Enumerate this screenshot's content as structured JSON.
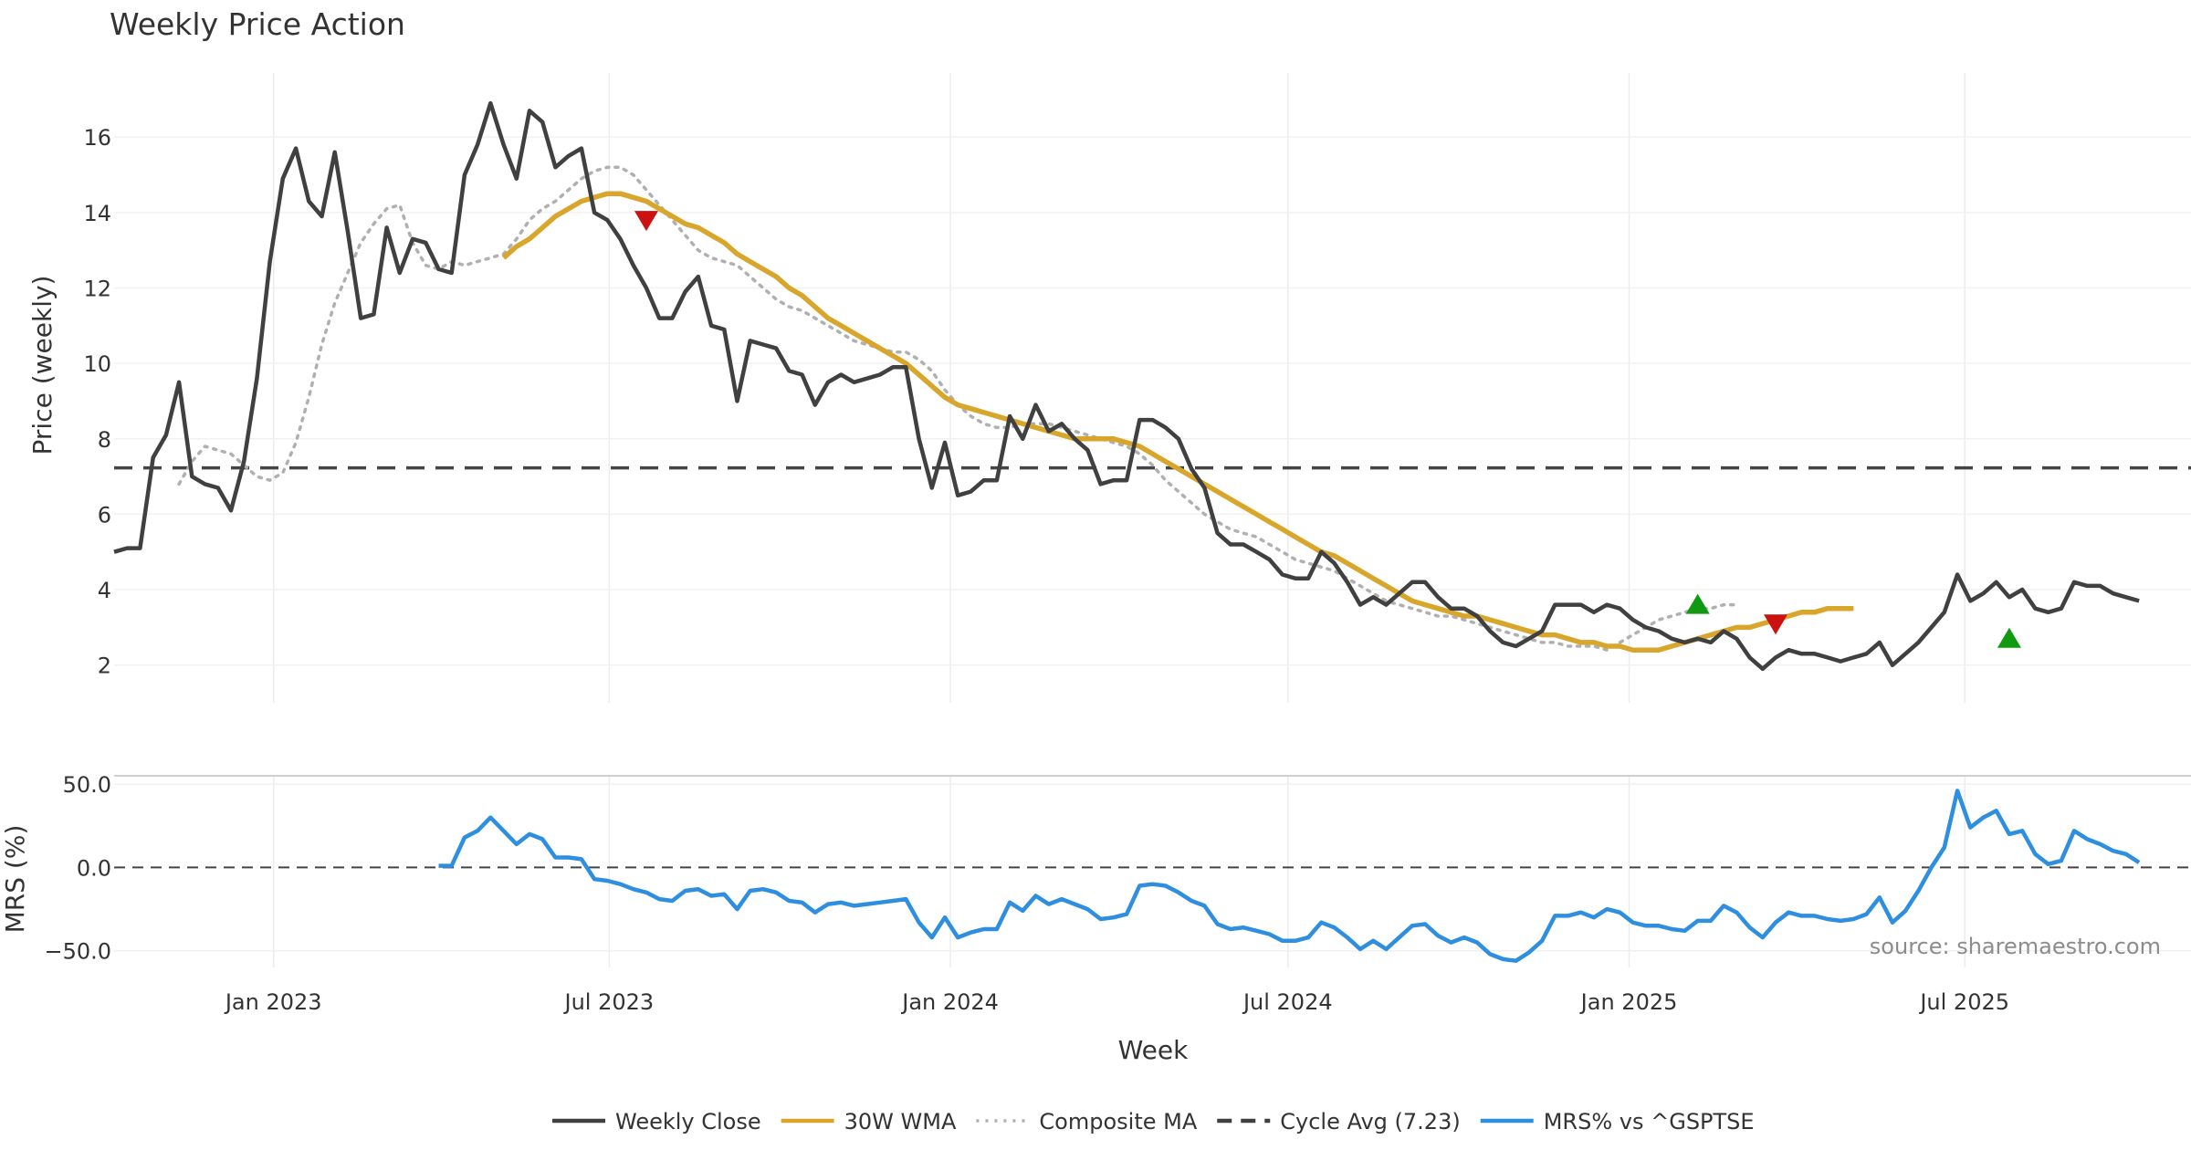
{
  "chart_data": {
    "type": "line",
    "title": "Weekly Price Action",
    "xlabel": "Week",
    "x_start": "2022-10-07",
    "x_range": [
      "2022-10-07",
      "2025-10-31"
    ],
    "x_ticks": [
      {
        "label": "Jan 2023",
        "date": "2023-01-01"
      },
      {
        "label": "Jul 2023",
        "date": "2023-07-01"
      },
      {
        "label": "Jan 2024",
        "date": "2024-01-01"
      },
      {
        "label": "Jul 2024",
        "date": "2024-07-01"
      },
      {
        "label": "Jan 2025",
        "date": "2025-01-01"
      },
      {
        "label": "Jul 2025",
        "date": "2025-07-01"
      }
    ],
    "grid": true,
    "legend_position": "bottom",
    "source": "source: sharemaestro.com",
    "price_panel": {
      "ylabel": "Price (weekly)",
      "ylim": [
        1.0,
        17.7
      ],
      "yticks": [
        "2",
        "4",
        "6",
        "8",
        "10",
        "12",
        "14",
        "16"
      ],
      "cycle_avg": 7.23,
      "series": [
        {
          "name": "Weekly Close",
          "color": "#404040",
          "style": "solid",
          "values": [
            5.0,
            5.1,
            5.1,
            7.5,
            8.1,
            9.5,
            7.0,
            6.8,
            6.7,
            6.1,
            7.4,
            9.6,
            12.7,
            14.9,
            15.7,
            14.3,
            13.9,
            15.6,
            13.5,
            11.2,
            11.3,
            13.6,
            12.4,
            13.3,
            13.2,
            12.5,
            12.4,
            15.0,
            15.8,
            16.9,
            15.8,
            14.9,
            16.7,
            16.4,
            15.2,
            15.5,
            15.7,
            14.0,
            13.8,
            13.3,
            12.6,
            12.0,
            11.2,
            11.2,
            11.9,
            12.3,
            11.0,
            10.9,
            9.0,
            10.6,
            10.5,
            10.4,
            9.8,
            9.7,
            8.9,
            9.5,
            9.7,
            9.5,
            9.6,
            9.7,
            9.9,
            9.9,
            8.0,
            6.7,
            7.9,
            6.5,
            6.6,
            6.9,
            6.9,
            8.6,
            8.0,
            8.9,
            8.2,
            8.4,
            8.0,
            7.7,
            6.8,
            6.9,
            6.9,
            8.5,
            8.5,
            8.3,
            8.0,
            7.2,
            6.7,
            5.5,
            5.2,
            5.2,
            5.0,
            4.8,
            4.4,
            4.3,
            4.3,
            5.0,
            4.7,
            4.2,
            3.6,
            3.8,
            3.6,
            3.9,
            4.2,
            4.2,
            3.8,
            3.5,
            3.5,
            3.3,
            2.9,
            2.6,
            2.5,
            2.7,
            2.9,
            3.6,
            3.6,
            3.6,
            3.4,
            3.6,
            3.5,
            3.2,
            3.0,
            2.9,
            2.7,
            2.6,
            2.7,
            2.6,
            2.9,
            2.7,
            2.2,
            1.9,
            2.2,
            2.4,
            2.3,
            2.3,
            2.2,
            2.1,
            2.2,
            2.3,
            2.6,
            2.0,
            2.3,
            2.6,
            3.0,
            3.4,
            4.4,
            3.7,
            3.9,
            4.2,
            3.8,
            4.0,
            3.5,
            3.4,
            3.5,
            4.2,
            4.1,
            4.1,
            3.9,
            3.8,
            3.7
          ]
        },
        {
          "name": "30W WMA",
          "color": "#d9a62c",
          "style": "solid",
          "start_index": 30,
          "values": [
            12.8,
            13.1,
            13.3,
            13.6,
            13.9,
            14.1,
            14.3,
            14.4,
            14.5,
            14.5,
            14.4,
            14.3,
            14.1,
            13.9,
            13.7,
            13.6,
            13.4,
            13.2,
            12.9,
            12.7,
            12.5,
            12.3,
            12.0,
            11.8,
            11.5,
            11.2,
            11.0,
            10.8,
            10.6,
            10.4,
            10.2,
            10.0,
            9.7,
            9.4,
            9.1,
            8.9,
            8.8,
            8.7,
            8.6,
            8.5,
            8.4,
            8.3,
            8.2,
            8.1,
            8.0,
            8.0,
            8.0,
            8.0,
            7.9,
            7.8,
            7.6,
            7.4,
            7.2,
            7.0,
            6.8,
            6.6,
            6.4,
            6.2,
            6.0,
            5.8,
            5.6,
            5.4,
            5.2,
            5.0,
            4.9,
            4.7,
            4.5,
            4.3,
            4.1,
            3.9,
            3.7,
            3.6,
            3.5,
            3.4,
            3.3,
            3.3,
            3.2,
            3.1,
            3.0,
            2.9,
            2.8,
            2.8,
            2.7,
            2.6,
            2.6,
            2.5,
            2.5,
            2.4,
            2.4,
            2.4,
            2.5,
            2.6,
            2.7,
            2.8,
            2.9,
            3.0,
            3.0,
            3.1,
            3.2,
            3.3,
            3.4,
            3.4,
            3.5,
            3.5,
            3.5
          ]
        },
        {
          "name": "Composite MA",
          "color": "#b0b0b0",
          "style": "dotted",
          "start_index": 5,
          "values": [
            6.8,
            7.4,
            7.8,
            7.7,
            7.6,
            7.3,
            7.0,
            6.9,
            7.1,
            7.9,
            9.1,
            10.5,
            11.6,
            12.4,
            13.2,
            13.7,
            14.1,
            14.2,
            13.2,
            12.6,
            12.5,
            12.7,
            12.6,
            12.7,
            12.8,
            12.9,
            13.3,
            13.8,
            14.1,
            14.3,
            14.6,
            14.9,
            15.1,
            15.2,
            15.2,
            15.0,
            14.6,
            14.2,
            13.8,
            13.4,
            13.0,
            12.8,
            12.7,
            12.6,
            12.3,
            12.0,
            11.7,
            11.5,
            11.4,
            11.2,
            11.0,
            10.8,
            10.6,
            10.5,
            10.4,
            10.3,
            10.3,
            10.1,
            9.8,
            9.3,
            8.9,
            8.6,
            8.4,
            8.3,
            8.3,
            8.4,
            8.4,
            8.4,
            8.3,
            8.2,
            8.1,
            8.0,
            7.9,
            7.8,
            7.6,
            7.3,
            6.9,
            6.6,
            6.3,
            6.0,
            5.8,
            5.6,
            5.5,
            5.4,
            5.2,
            5.0,
            4.8,
            4.7,
            4.6,
            4.5,
            4.3,
            4.1,
            3.9,
            3.7,
            3.6,
            3.5,
            3.4,
            3.3,
            3.3,
            3.2,
            3.1,
            3.0,
            2.9,
            2.8,
            2.7,
            2.6,
            2.6,
            2.5,
            2.5,
            2.5,
            2.4,
            2.6,
            2.8,
            3.0,
            3.2,
            3.3,
            3.4,
            3.5,
            3.5,
            3.6,
            3.6
          ]
        }
      ],
      "signals": [
        {
          "type": "sell",
          "index": 41,
          "value": 13.8
        },
        {
          "type": "buy",
          "index": 122,
          "value": 3.6
        },
        {
          "type": "sell",
          "index": 128,
          "value": 3.1
        },
        {
          "type": "buy",
          "index": 146,
          "value": 2.7
        }
      ]
    },
    "mrs_panel": {
      "ylabel": "MRS (%)",
      "ylim": [
        -60,
        55
      ],
      "yticks": [
        "50.0",
        "0.0",
        "−50.0"
      ],
      "series": [
        {
          "name": "MRS% vs ^GSPTSE",
          "color": "#2e8ee0",
          "style": "solid",
          "start_index": 25,
          "values": [
            1,
            1,
            18,
            22,
            30,
            22,
            14,
            20,
            17,
            6,
            6,
            5,
            -7,
            -8,
            -10,
            -13,
            -15,
            -19,
            -20,
            -14,
            -13,
            -17,
            -16,
            -25,
            -14,
            -13,
            -15,
            -20,
            -21,
            -27,
            -22,
            -21,
            -23,
            -22,
            -21,
            -20,
            -19,
            -33,
            -42,
            -30,
            -42,
            -39,
            -37,
            -37,
            -21,
            -26,
            -17,
            -22,
            -19,
            -22,
            -25,
            -31,
            -30,
            -28,
            -11,
            -10,
            -11,
            -15,
            -20,
            -23,
            -34,
            -37,
            -36,
            -38,
            -40,
            -44,
            -44,
            -42,
            -33,
            -36,
            -42,
            -49,
            -44,
            -49,
            -42,
            -35,
            -34,
            -41,
            -45,
            -42,
            -45,
            -52,
            -55,
            -56,
            -51,
            -44,
            -29,
            -29,
            -27,
            -30,
            -25,
            -27,
            -33,
            -35,
            -35,
            -37,
            -38,
            -32,
            -32,
            -23,
            -27,
            -36,
            -42,
            -33,
            -27,
            -29,
            -29,
            -31,
            -32,
            -31,
            -28,
            -18,
            -33,
            -26,
            -14,
            0,
            12,
            46,
            24,
            30,
            34,
            20,
            22,
            8,
            2,
            4,
            22,
            17,
            14,
            10,
            8,
            3
          ]
        }
      ]
    },
    "legend": [
      {
        "label": "Weekly Close",
        "color": "#404040",
        "style": "solid"
      },
      {
        "label": "30W WMA",
        "color": "#d9a62c",
        "style": "solid"
      },
      {
        "label": "Composite MA",
        "color": "#b0b0b0",
        "style": "dotted"
      },
      {
        "label": "Cycle Avg (7.23)",
        "color": "#404040",
        "style": "dashed"
      },
      {
        "label": "MRS% vs ^GSPTSE",
        "color": "#2e8ee0",
        "style": "solid"
      }
    ]
  }
}
